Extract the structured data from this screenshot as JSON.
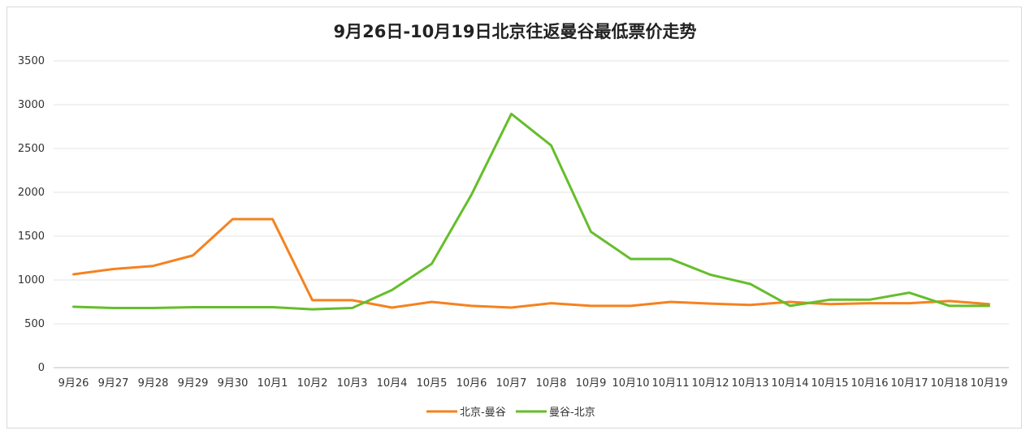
{
  "chart_data": {
    "type": "line",
    "title": "9月26日-10月19日北京往返曼谷最低票价走势",
    "xlabel": "",
    "ylabel": "",
    "ylim": [
      0,
      3500
    ],
    "yticks": [
      0,
      500,
      1000,
      1500,
      2000,
      2500,
      3000,
      3500
    ],
    "grid": true,
    "legend_position": "bottom",
    "categories": [
      "9月26",
      "9月27",
      "9月28",
      "9月29",
      "9月30",
      "10月1",
      "10月2",
      "10月3",
      "10月4",
      "10月5",
      "10月6",
      "10月7",
      "10月8",
      "10月9",
      "10月10",
      "10月11",
      "10月12",
      "10月13",
      "10月14",
      "10月15",
      "10月16",
      "10月17",
      "10月18",
      "10月19"
    ],
    "series": [
      {
        "name": "北京-曼谷",
        "color": "#f5821f",
        "values": [
          1065,
          1125,
          1160,
          1280,
          1695,
          1695,
          770,
          770,
          685,
          750,
          705,
          685,
          735,
          705,
          705,
          750,
          730,
          715,
          750,
          725,
          735,
          735,
          760,
          725
        ]
      },
      {
        "name": "曼谷-北京",
        "color": "#65be2b",
        "values": [
          695,
          680,
          680,
          690,
          690,
          690,
          665,
          680,
          885,
          1185,
          1975,
          2895,
          2535,
          1550,
          1240,
          1240,
          1060,
          955,
          705,
          775,
          775,
          855,
          705,
          705
        ]
      }
    ]
  }
}
